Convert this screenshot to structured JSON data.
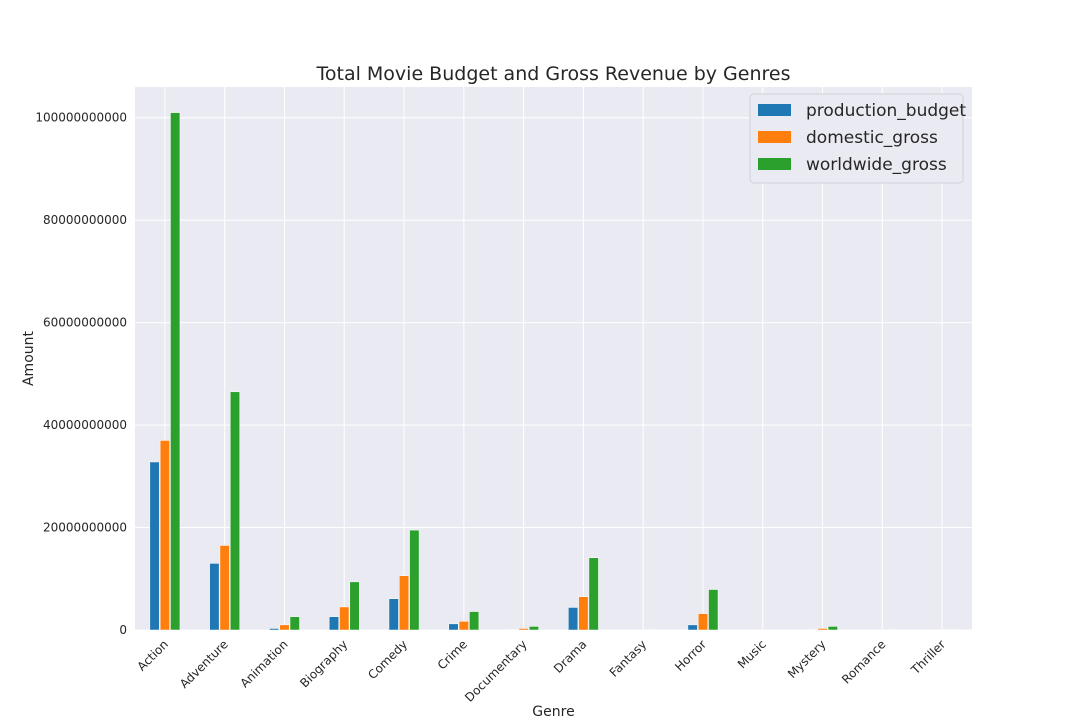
{
  "chart_data": {
    "type": "bar",
    "title": "Total Movie Budget and Gross Revenue by Genres",
    "xlabel": "Genre",
    "ylabel": "Amount",
    "categories": [
      "Action",
      "Adventure",
      "Animation",
      "Biography",
      "Comedy",
      "Crime",
      "Documentary",
      "Drama",
      "Fantasy",
      "Horror",
      "Music",
      "Mystery",
      "Romance",
      "Thriller"
    ],
    "series": [
      {
        "name": "production_budget",
        "color": "#1f77b4",
        "values": [
          32800000000,
          13000000000,
          300000000,
          2600000000,
          6100000000,
          1200000000,
          100000000,
          4400000000,
          0,
          1000000000,
          0,
          100000000,
          0,
          0
        ]
      },
      {
        "name": "domestic_gross",
        "color": "#ff7f0e",
        "values": [
          37000000000,
          16500000000,
          1000000000,
          4500000000,
          10600000000,
          1700000000,
          300000000,
          6500000000,
          0,
          3200000000,
          0,
          300000000,
          0,
          0
        ]
      },
      {
        "name": "worldwide_gross",
        "color": "#2ca02c",
        "values": [
          101000000000,
          46500000000,
          2600000000,
          9400000000,
          19500000000,
          3600000000,
          700000000,
          14100000000,
          100000000,
          7900000000,
          0,
          700000000,
          100000000,
          100000000
        ]
      }
    ],
    "yticks": [
      "0",
      "20000000000",
      "40000000000",
      "60000000000",
      "80000000000",
      "100000000000"
    ],
    "ytick_values": [
      0,
      20000000000,
      40000000000,
      60000000000,
      80000000000,
      100000000000
    ],
    "ylim": [
      0,
      106000000000
    ],
    "grid": true,
    "legend_position": "top-right",
    "background": "#eaeaf2",
    "grid_color": "#ffffff"
  }
}
